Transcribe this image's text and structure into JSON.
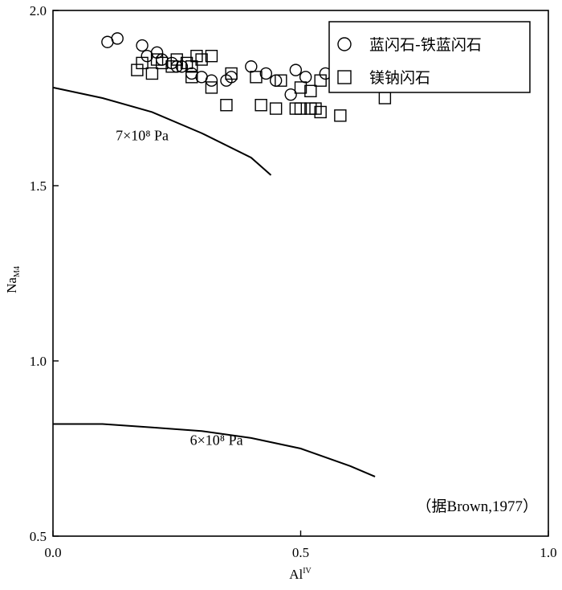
{
  "chart_data": {
    "type": "scatter",
    "title": "",
    "xlabel_main": "Al",
    "xlabel_sup": "IV",
    "ylabel_main": "Na",
    "ylabel_sub": "M4",
    "xlim": [
      0.0,
      1.0
    ],
    "ylim": [
      0.5,
      2.0
    ],
    "x_ticks": [
      {
        "value": 0.0,
        "label": "0.0"
      },
      {
        "value": 0.5,
        "label": "0.5"
      },
      {
        "value": 1.0,
        "label": "1.0"
      }
    ],
    "y_ticks": [
      {
        "value": 0.5,
        "label": "0.5"
      },
      {
        "value": 1.0,
        "label": "1.0"
      },
      {
        "value": 1.5,
        "label": "1.5"
      },
      {
        "value": 2.0,
        "label": "2.0"
      }
    ],
    "grid": false,
    "legend_position": "top-right",
    "series": [
      {
        "name": "蓝闪石-铁蓝闪石",
        "marker": "circle",
        "points": [
          [
            0.11,
            1.91
          ],
          [
            0.13,
            1.92
          ],
          [
            0.18,
            1.9
          ],
          [
            0.19,
            1.87
          ],
          [
            0.21,
            1.88
          ],
          [
            0.22,
            1.86
          ],
          [
            0.24,
            1.85
          ],
          [
            0.25,
            1.84
          ],
          [
            0.26,
            1.84
          ],
          [
            0.28,
            1.82
          ],
          [
            0.3,
            1.81
          ],
          [
            0.32,
            1.8
          ],
          [
            0.35,
            1.8
          ],
          [
            0.36,
            1.81
          ],
          [
            0.4,
            1.84
          ],
          [
            0.43,
            1.82
          ],
          [
            0.45,
            1.8
          ],
          [
            0.48,
            1.76
          ],
          [
            0.49,
            1.83
          ],
          [
            0.51,
            1.81
          ],
          [
            0.55,
            1.82
          ]
        ]
      },
      {
        "name": "镁钠闪石",
        "marker": "square",
        "points": [
          [
            0.18,
            1.85
          ],
          [
            0.21,
            1.86
          ],
          [
            0.22,
            1.85
          ],
          [
            0.24,
            1.84
          ],
          [
            0.25,
            1.86
          ],
          [
            0.27,
            1.85
          ],
          [
            0.28,
            1.84
          ],
          [
            0.17,
            1.83
          ],
          [
            0.2,
            1.82
          ],
          [
            0.29,
            1.87
          ],
          [
            0.3,
            1.86
          ],
          [
            0.32,
            1.87
          ],
          [
            0.36,
            1.82
          ],
          [
            0.28,
            1.81
          ],
          [
            0.32,
            1.78
          ],
          [
            0.41,
            1.81
          ],
          [
            0.46,
            1.8
          ],
          [
            0.5,
            1.78
          ],
          [
            0.52,
            1.77
          ],
          [
            0.54,
            1.8
          ],
          [
            0.35,
            1.73
          ],
          [
            0.42,
            1.73
          ],
          [
            0.45,
            1.72
          ],
          [
            0.49,
            1.72
          ],
          [
            0.5,
            1.72
          ],
          [
            0.52,
            1.72
          ],
          [
            0.53,
            1.72
          ],
          [
            0.54,
            1.71
          ],
          [
            0.58,
            1.7
          ],
          [
            0.67,
            1.75
          ]
        ]
      }
    ],
    "curves": [
      {
        "label": "7×10⁸ Pa",
        "label_at": [
          0.18,
          1.63
        ],
        "points": [
          [
            0.0,
            1.78
          ],
          [
            0.1,
            1.75
          ],
          [
            0.2,
            1.71
          ],
          [
            0.3,
            1.65
          ],
          [
            0.4,
            1.58
          ],
          [
            0.44,
            1.53
          ]
        ]
      },
      {
        "label": "6×10⁸ Pa",
        "label_at": [
          0.33,
          0.76
        ],
        "points": [
          [
            0.0,
            0.82
          ],
          [
            0.1,
            0.82
          ],
          [
            0.2,
            0.81
          ],
          [
            0.3,
            0.8
          ],
          [
            0.4,
            0.78
          ],
          [
            0.5,
            0.75
          ],
          [
            0.6,
            0.7
          ],
          [
            0.65,
            0.67
          ]
        ]
      }
    ],
    "annotation": "（据Brown,1977）"
  }
}
